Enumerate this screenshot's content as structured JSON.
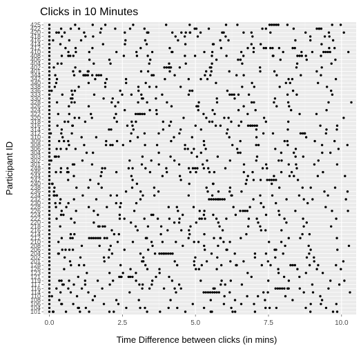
{
  "chart_data": {
    "type": "scatter",
    "title": "Clicks in 10 Minutes",
    "xlabel": "Time Difference between clicks (in mins)",
    "ylabel": "Participant ID",
    "xlim": [
      -0.2,
      10.5
    ],
    "x_ticks": [
      0.0,
      2.5,
      5.0,
      7.5,
      10.0
    ],
    "x_tick_labels": [
      "0.0",
      "2.5",
      "5.0",
      "7.5",
      "10.0"
    ],
    "y_tick_labels": [
      "101",
      "104",
      "106",
      "108",
      "110",
      "114",
      "116",
      "117",
      "119",
      "121",
      "123",
      "126",
      "128",
      "201",
      "202",
      "204",
      "206",
      "208",
      "210",
      "212",
      "214",
      "216",
      "218",
      "220",
      "222",
      "224",
      "226",
      "228",
      "230",
      "232",
      "234",
      "236",
      "238",
      "240",
      "242",
      "244",
      "246",
      "248",
      "301",
      "302",
      "303",
      "304",
      "306",
      "308",
      "309",
      "310",
      "312",
      "314",
      "316",
      "318",
      "320",
      "322",
      "324",
      "326",
      "328",
      "330",
      "333",
      "336",
      "338",
      "340",
      "342",
      "344",
      "401",
      "402",
      "404",
      "406",
      "408",
      "410",
      "412",
      "414",
      "416",
      "418",
      "420",
      "422",
      "425"
    ],
    "grid": true,
    "background": "#ebebeb",
    "point_color": "#000000",
    "series_note": "",
    "points_per_row_seed": [
      [
        0.0,
        0.3,
        0.45,
        0.6,
        1.2,
        1.9,
        2.5,
        3.0,
        3.6,
        4.0,
        4.4,
        4.8,
        5.3,
        5.8,
        6.2,
        6.6,
        7.3,
        7.9,
        8.6,
        9.4,
        10.2
      ],
      [
        0.0,
        0.6,
        0.7,
        0.8,
        1.6,
        2.3,
        3.0,
        3.1,
        3.2,
        3.9,
        4.6,
        5.4,
        5.5,
        6.3,
        7.0,
        7.6,
        8.2,
        9.0,
        9.8
      ],
      [
        0.0,
        0.7,
        0.8,
        1.5,
        2.2,
        2.8,
        3.5,
        4.2,
        5.0,
        5.7,
        6.4,
        7.2,
        7.9,
        8.5,
        9.3,
        10.1
      ],
      [
        0.0,
        0.5,
        1.3,
        2.0,
        2.8,
        3.7,
        4.5,
        5.2,
        5.9,
        6.8,
        7.6,
        8.3,
        9.2
      ],
      [
        0.0,
        0.2,
        0.4,
        1.1,
        1.9,
        2.6,
        3.4,
        4.1,
        4.9,
        5.7,
        6.5,
        7.3,
        8.1,
        8.8,
        9.6
      ],
      [
        0.0,
        0.9,
        1.7,
        2.4,
        3.1,
        3.9,
        4.6,
        5.3,
        6.1,
        6.9,
        7.7,
        8.5,
        9.2,
        10.0
      ]
    ]
  }
}
